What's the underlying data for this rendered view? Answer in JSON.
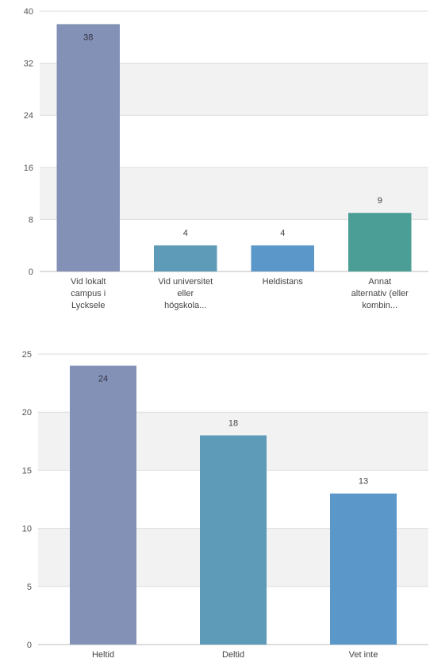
{
  "chart_data": [
    {
      "type": "bar",
      "categories": [
        [
          "Vid lokalt",
          "campus i",
          "Lycksele"
        ],
        [
          "Vid universitet",
          "eller",
          "högskola..."
        ],
        [
          "Heldistans"
        ],
        [
          "Annat",
          "alternativ (eller",
          "kombin..."
        ]
      ],
      "values": [
        38,
        4,
        4,
        9
      ],
      "colors": [
        "#8491b6",
        "#5e9bb8",
        "#5b97c9",
        "#4a9e96"
      ],
      "ylim": [
        0,
        40
      ],
      "yticks": [
        0,
        8,
        16,
        24,
        32,
        40
      ],
      "grid": true,
      "title": "",
      "xlabel": "",
      "ylabel": ""
    },
    {
      "type": "bar",
      "categories": [
        [
          "Heltid"
        ],
        [
          "Deltid"
        ],
        [
          "Vet inte"
        ]
      ],
      "values": [
        24,
        18,
        13
      ],
      "colors": [
        "#8491b6",
        "#5e9bb8",
        "#5b97c9"
      ],
      "ylim": [
        0,
        25
      ],
      "yticks": [
        0,
        5,
        10,
        15,
        20,
        25
      ],
      "grid": true,
      "title": "",
      "xlabel": "",
      "ylabel": ""
    }
  ]
}
